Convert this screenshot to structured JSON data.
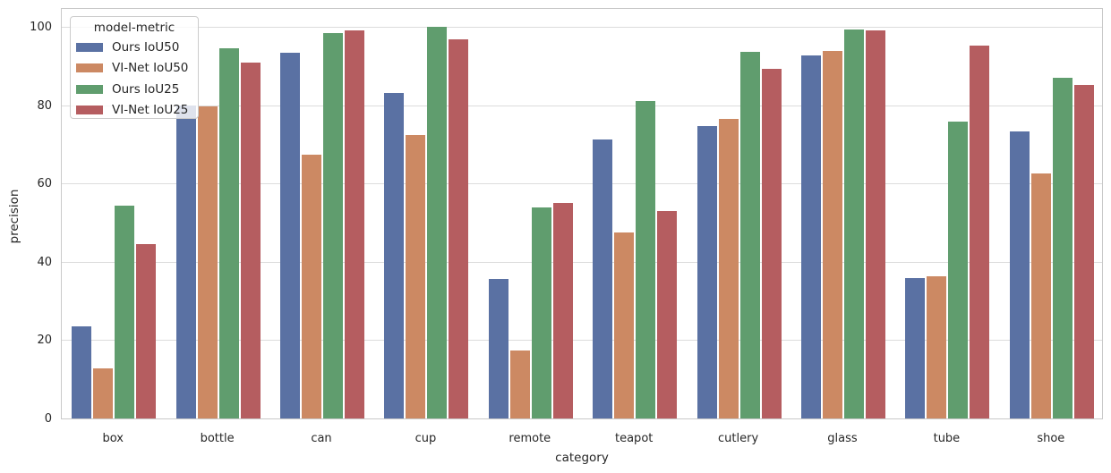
{
  "chart_data": {
    "type": "bar",
    "title": "",
    "xlabel": "category",
    "ylabel": "precision",
    "ylim": [
      0,
      105
    ],
    "yticks": [
      0,
      20,
      40,
      60,
      80,
      100
    ],
    "grid": true,
    "legend": {
      "title": "model-metric",
      "position": "upper left"
    },
    "categories": [
      "box",
      "bottle",
      "can",
      "cup",
      "remote",
      "teapot",
      "cutlery",
      "glass",
      "tube",
      "shoe"
    ],
    "series": [
      {
        "name": "Ours IoU50",
        "color": "#5A71A3",
        "values": [
          23.5,
          79.8,
          93.4,
          83.0,
          35.6,
          71.2,
          74.6,
          92.7,
          35.9,
          73.3
        ]
      },
      {
        "name": "VI-Net IoU50",
        "color": "#CC8963",
        "values": [
          12.7,
          79.7,
          67.3,
          72.4,
          17.3,
          47.4,
          76.6,
          93.8,
          36.4,
          62.6
        ]
      },
      {
        "name": "Ours IoU25",
        "color": "#609D6E",
        "values": [
          54.4,
          94.5,
          98.4,
          100.0,
          53.8,
          81.1,
          93.6,
          99.4,
          75.8,
          87.0
        ]
      },
      {
        "name": "VI-Net IoU25",
        "color": "#B55D60",
        "values": [
          44.6,
          90.8,
          99.0,
          96.9,
          55.1,
          52.9,
          89.3,
          99.2,
          95.1,
          85.2
        ]
      }
    ]
  },
  "colors": {
    "spine": "#c9c9c9",
    "grid": "#dcdcdc",
    "text": "#262626",
    "legend_border": "#cccccc"
  }
}
